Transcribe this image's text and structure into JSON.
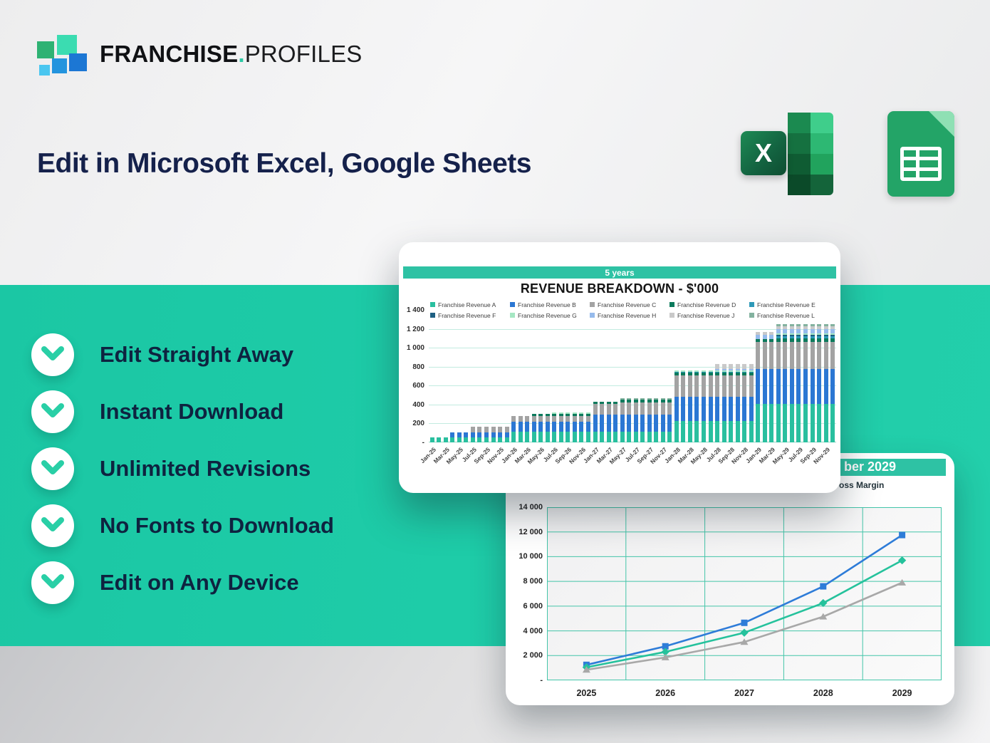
{
  "logo": {
    "brand_bold": "FRANCHISE",
    "brand_dot": ".",
    "brand_light": "PROFILES"
  },
  "headline": "Edit in Microsoft Excel, Google Sheets",
  "excel_icon_letter": "X",
  "features": [
    {
      "label": "Edit Straight Away"
    },
    {
      "label": "Instant Download"
    },
    {
      "label": "Unlimited Revisions"
    },
    {
      "label": "No Fonts to Download"
    },
    {
      "label": "Edit on Any Device"
    }
  ],
  "colors": {
    "teal_band": "#1EC9A6",
    "card_header_teal": "#2EC2A4",
    "chevron_teal": "#29CFA6",
    "navy_text": "#0E2340",
    "headline_navy": "#15214B"
  },
  "chart_data": [
    {
      "type": "bar",
      "stacked": true,
      "header_tab": "5 years",
      "title": "REVENUE BREAKDOWN - $'000",
      "ylim": [
        0,
        1400
      ],
      "y_ticks": [
        "1 400",
        "1 200",
        "1 000",
        "800",
        "600",
        "400",
        "200",
        "-"
      ],
      "gridlines": [
        200,
        400,
        600,
        800,
        1000,
        1200
      ],
      "n_bars": 60,
      "x_tick_every": 2,
      "x_tick_labels": [
        "Jan-25",
        "Mar-25",
        "May-25",
        "Jul-25",
        "Sep-25",
        "Nov-25",
        "Jan-26",
        "Mar-26",
        "May-26",
        "Jul-26",
        "Sep-26",
        "Nov-26",
        "Jan-27",
        "Mar-27",
        "May-27",
        "Jul-27",
        "Sep-27",
        "Nov-27",
        "Jan-28",
        "Mar-28",
        "May-28",
        "Jul-28",
        "Sep-28",
        "Nov-28",
        "Jan-29",
        "Mar-29",
        "May-29",
        "Jul-29",
        "Sep-29",
        "Nov-29"
      ],
      "legend_position": "top",
      "series": [
        {
          "name": "Franchise Revenue A",
          "color": "#29BF9F",
          "values": [
            55,
            55,
            55,
            55,
            55,
            55,
            55,
            55,
            55,
            55,
            55,
            55,
            115,
            115,
            115,
            115,
            115,
            115,
            115,
            115,
            115,
            115,
            115,
            115,
            115,
            115,
            115,
            115,
            115,
            115,
            115,
            115,
            115,
            115,
            115,
            115,
            225,
            225,
            225,
            225,
            225,
            225,
            225,
            225,
            225,
            225,
            225,
            225,
            410,
            410,
            410,
            410,
            410,
            410,
            410,
            410,
            410,
            410,
            410,
            410
          ]
        },
        {
          "name": "Franchise Revenue B",
          "color": "#2B77D3",
          "values": [
            0,
            0,
            0,
            50,
            50,
            50,
            50,
            50,
            50,
            50,
            50,
            50,
            100,
            100,
            100,
            100,
            100,
            100,
            100,
            100,
            100,
            100,
            100,
            100,
            180,
            180,
            180,
            180,
            180,
            180,
            180,
            180,
            180,
            180,
            180,
            180,
            255,
            255,
            255,
            255,
            255,
            255,
            255,
            255,
            255,
            255,
            255,
            255,
            365,
            365,
            365,
            365,
            365,
            365,
            365,
            365,
            365,
            365,
            365,
            365
          ]
        },
        {
          "name": "Franchise Revenue C",
          "color": "#A3A3A3",
          "values": [
            0,
            0,
            0,
            0,
            0,
            0,
            60,
            60,
            60,
            60,
            60,
            60,
            62,
            62,
            62,
            62,
            62,
            62,
            62,
            62,
            62,
            62,
            62,
            62,
            115,
            115,
            115,
            115,
            130,
            130,
            130,
            130,
            130,
            130,
            130,
            130,
            225,
            225,
            225,
            225,
            225,
            225,
            225,
            225,
            225,
            225,
            225,
            225,
            290,
            290,
            290,
            290,
            290,
            290,
            290,
            290,
            290,
            290,
            290,
            290
          ]
        },
        {
          "name": "Franchise Revenue D",
          "color": "#0B7A5C",
          "values": [
            0,
            0,
            0,
            0,
            0,
            0,
            0,
            0,
            0,
            0,
            0,
            0,
            0,
            0,
            0,
            28,
            28,
            28,
            28,
            28,
            28,
            28,
            28,
            28,
            18,
            18,
            18,
            18,
            25,
            25,
            25,
            25,
            25,
            25,
            25,
            25,
            32,
            32,
            32,
            32,
            32,
            32,
            32,
            32,
            32,
            32,
            32,
            32,
            30,
            30,
            30,
            35,
            35,
            35,
            35,
            35,
            35,
            35,
            35,
            35
          ]
        },
        {
          "name": "Franchise Revenue E",
          "color": "#2E99B8",
          "values": [
            0,
            0,
            0,
            0,
            0,
            0,
            0,
            0,
            0,
            0,
            0,
            0,
            0,
            0,
            0,
            0,
            0,
            0,
            0,
            0,
            0,
            0,
            0,
            0,
            0,
            0,
            0,
            0,
            0,
            0,
            0,
            0,
            0,
            0,
            0,
            0,
            12,
            12,
            12,
            12,
            12,
            12,
            12,
            12,
            12,
            12,
            12,
            12,
            0,
            0,
            0,
            20,
            20,
            20,
            20,
            20,
            20,
            20,
            20,
            20
          ]
        },
        {
          "name": "Franchise Revenue F",
          "color": "#1E5F82",
          "values": [
            0,
            0,
            0,
            0,
            0,
            0,
            0,
            0,
            0,
            0,
            0,
            0,
            0,
            0,
            0,
            0,
            0,
            0,
            0,
            0,
            0,
            0,
            0,
            0,
            0,
            0,
            0,
            0,
            0,
            0,
            0,
            0,
            0,
            0,
            0,
            0,
            0,
            0,
            0,
            0,
            0,
            0,
            0,
            0,
            0,
            0,
            0,
            0,
            0,
            0,
            0,
            15,
            15,
            15,
            15,
            15,
            15,
            15,
            15,
            15
          ]
        },
        {
          "name": "Franchise Revenue G",
          "color": "#A5E7C3",
          "values": [
            0,
            0,
            0,
            0,
            0,
            0,
            0,
            0,
            0,
            0,
            0,
            0,
            0,
            0,
            0,
            0,
            0,
            0,
            12,
            12,
            12,
            12,
            12,
            12,
            0,
            0,
            0,
            0,
            0,
            0,
            0,
            0,
            0,
            0,
            0,
            0,
            15,
            15,
            15,
            15,
            15,
            15,
            15,
            15,
            15,
            15,
            15,
            15,
            0,
            0,
            0,
            20,
            20,
            20,
            20,
            20,
            20,
            20,
            20,
            20
          ]
        },
        {
          "name": "Franchise Revenue H",
          "color": "#96BBEC",
          "values": [
            0,
            0,
            0,
            0,
            0,
            0,
            0,
            0,
            0,
            0,
            0,
            0,
            0,
            0,
            0,
            0,
            0,
            0,
            0,
            0,
            0,
            0,
            0,
            0,
            0,
            0,
            0,
            0,
            0,
            0,
            0,
            0,
            0,
            0,
            0,
            0,
            0,
            0,
            0,
            0,
            0,
            0,
            12,
            12,
            12,
            12,
            12,
            12,
            45,
            45,
            45,
            45,
            45,
            45,
            45,
            45,
            45,
            45,
            45,
            45
          ]
        },
        {
          "name": "Franchise Revenue J",
          "color": "#C9C9C9",
          "values": [
            0,
            0,
            0,
            0,
            0,
            0,
            0,
            0,
            0,
            0,
            0,
            0,
            0,
            0,
            0,
            0,
            0,
            0,
            0,
            0,
            0,
            0,
            0,
            0,
            0,
            0,
            0,
            0,
            0,
            0,
            0,
            0,
            0,
            0,
            0,
            0,
            0,
            0,
            0,
            0,
            0,
            0,
            55,
            55,
            55,
            55,
            55,
            55,
            25,
            25,
            25,
            25,
            25,
            25,
            25,
            25,
            25,
            25,
            25,
            25
          ]
        },
        {
          "name": "Franchise Revenue L",
          "color": "#83B29F",
          "values": [
            0,
            0,
            0,
            0,
            0,
            0,
            0,
            0,
            0,
            0,
            0,
            0,
            0,
            0,
            0,
            0,
            0,
            0,
            0,
            0,
            0,
            0,
            0,
            0,
            0,
            0,
            0,
            0,
            20,
            20,
            20,
            20,
            20,
            20,
            20,
            20,
            0,
            0,
            0,
            0,
            0,
            0,
            0,
            0,
            0,
            0,
            0,
            0,
            0,
            0,
            0,
            25,
            25,
            25,
            25,
            25,
            25,
            25,
            25,
            25
          ]
        }
      ]
    },
    {
      "type": "line",
      "header_tab_visible_text": "ber 2029",
      "legend_visible_text": "oss Margin",
      "x": [
        "2025",
        "2026",
        "2027",
        "2028",
        "2029"
      ],
      "ylim": [
        0,
        14000
      ],
      "y_ticks": [
        "14 000",
        "12 000",
        "10 000",
        "8 000",
        "6 000",
        "4 000",
        "2 000",
        "-"
      ],
      "grid": true,
      "series": [
        {
          "name": "line-blue",
          "marker": "square",
          "color": "#2E7CD8",
          "values": [
            1250,
            2750,
            4650,
            7600,
            11750
          ]
        },
        {
          "name": "line-teal",
          "marker": "diamond",
          "color": "#25C29C",
          "values": [
            1050,
            2300,
            3850,
            6250,
            9700
          ]
        },
        {
          "name": "line-gray",
          "marker": "triangle",
          "color": "#A8A8A8",
          "values": [
            850,
            1850,
            3100,
            5150,
            7900
          ]
        }
      ]
    }
  ]
}
